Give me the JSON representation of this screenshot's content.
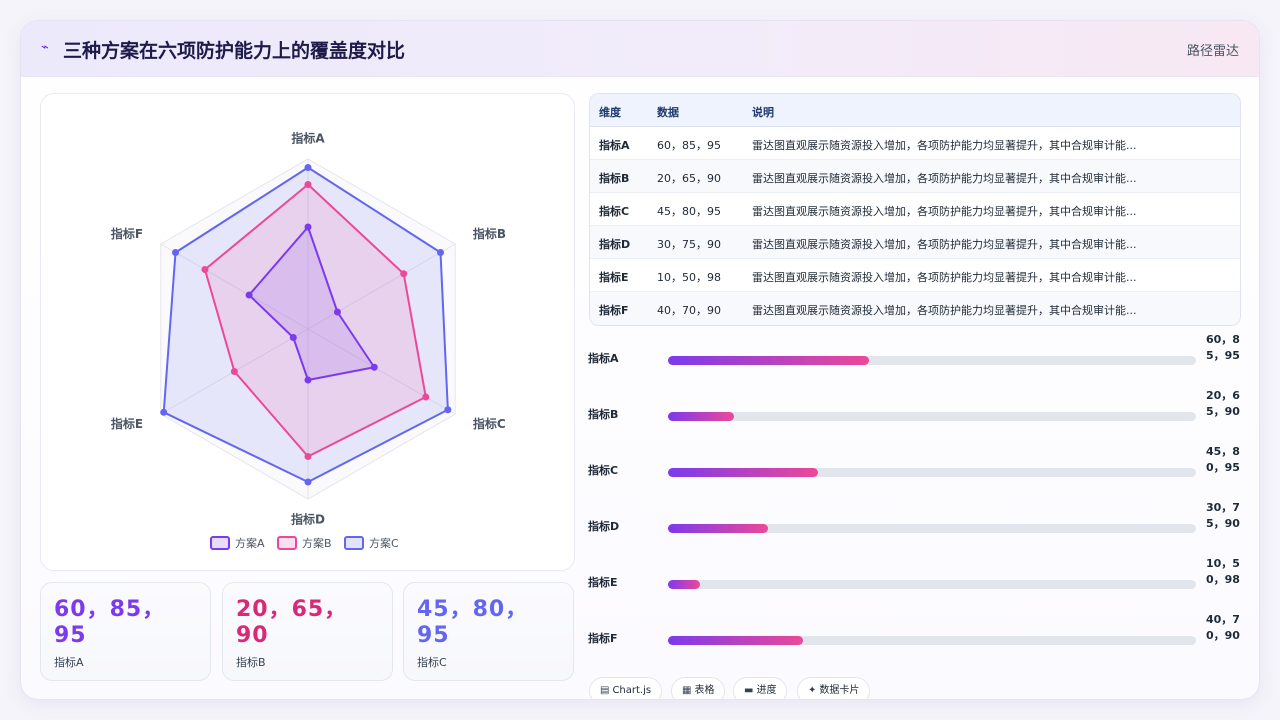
{
  "header": {
    "icon": "chart-line-icon",
    "title": "三种方案在六项防护能力上的覆盖度对比",
    "tag": "路径雷达"
  },
  "chart_data": {
    "type": "radar",
    "indicators": [
      "指标A",
      "指标B",
      "指标C",
      "指标D",
      "指标E",
      "指标F"
    ],
    "rlim": [
      0,
      100
    ],
    "grid": true,
    "legend_position": "bottom",
    "series": [
      {
        "name": "方案A",
        "values": [
          60,
          20,
          45,
          30,
          10,
          40
        ],
        "color": "#7c3aed"
      },
      {
        "name": "方案B",
        "values": [
          85,
          65,
          80,
          75,
          50,
          70
        ],
        "color": "#ec4899"
      },
      {
        "name": "方案C",
        "values": [
          95,
          90,
          95,
          90,
          98,
          90
        ],
        "color": "#6366f1"
      }
    ]
  },
  "stats": [
    {
      "value": "60，85，95",
      "label": "指标A",
      "color": "#7c3aed"
    },
    {
      "value": "20，65，90",
      "label": "指标B",
      "color": "#db2777"
    },
    {
      "value": "45，80，95",
      "label": "指标C",
      "color": "#6366f1"
    }
  ],
  "table": {
    "headers": [
      "维度",
      "数据",
      "说明"
    ],
    "rows": [
      {
        "dim": "指标A",
        "data": "60，85，95",
        "desc": "雷达图直观展示随资源投入增加，各项防护能力均显著提升，其中合规审计能..."
      },
      {
        "dim": "指标B",
        "data": "20，65，90",
        "desc": "雷达图直观展示随资源投入增加，各项防护能力均显著提升，其中合规审计能..."
      },
      {
        "dim": "指标C",
        "data": "45，80，95",
        "desc": "雷达图直观展示随资源投入增加，各项防护能力均显著提升，其中合规审计能..."
      },
      {
        "dim": "指标D",
        "data": "30，75，90",
        "desc": "雷达图直观展示随资源投入增加，各项防护能力均显著提升，其中合规审计能..."
      },
      {
        "dim": "指标E",
        "data": "10，50，98",
        "desc": "雷达图直观展示随资源投入增加，各项防护能力均显著提升，其中合规审计能..."
      },
      {
        "dim": "指标F",
        "data": "40，70，90",
        "desc": "雷达图直观展示随资源投入增加，各项防护能力均显著提升，其中合规审计能..."
      }
    ]
  },
  "progress": [
    {
      "label": "指标A",
      "value_text": "60，85，95",
      "fraction": 0.38
    },
    {
      "label": "指标B",
      "value_text": "20，65，90",
      "fraction": 0.125
    },
    {
      "label": "指标C",
      "value_text": "45，80，95",
      "fraction": 0.285
    },
    {
      "label": "指标D",
      "value_text": "30，75，90",
      "fraction": 0.19
    },
    {
      "label": "指标E",
      "value_text": "10，50，98",
      "fraction": 0.06
    },
    {
      "label": "指标F",
      "value_text": "40，70，90",
      "fraction": 0.255
    }
  ],
  "chips": [
    {
      "icon": "chart-icon",
      "glyph": "▤",
      "label": "Chart.js"
    },
    {
      "icon": "table-icon",
      "glyph": "▦",
      "label": "表格"
    },
    {
      "icon": "progress-icon",
      "glyph": "▬",
      "label": "进度"
    },
    {
      "icon": "sparkle-icon",
      "glyph": "✦",
      "label": "数据卡片"
    }
  ]
}
